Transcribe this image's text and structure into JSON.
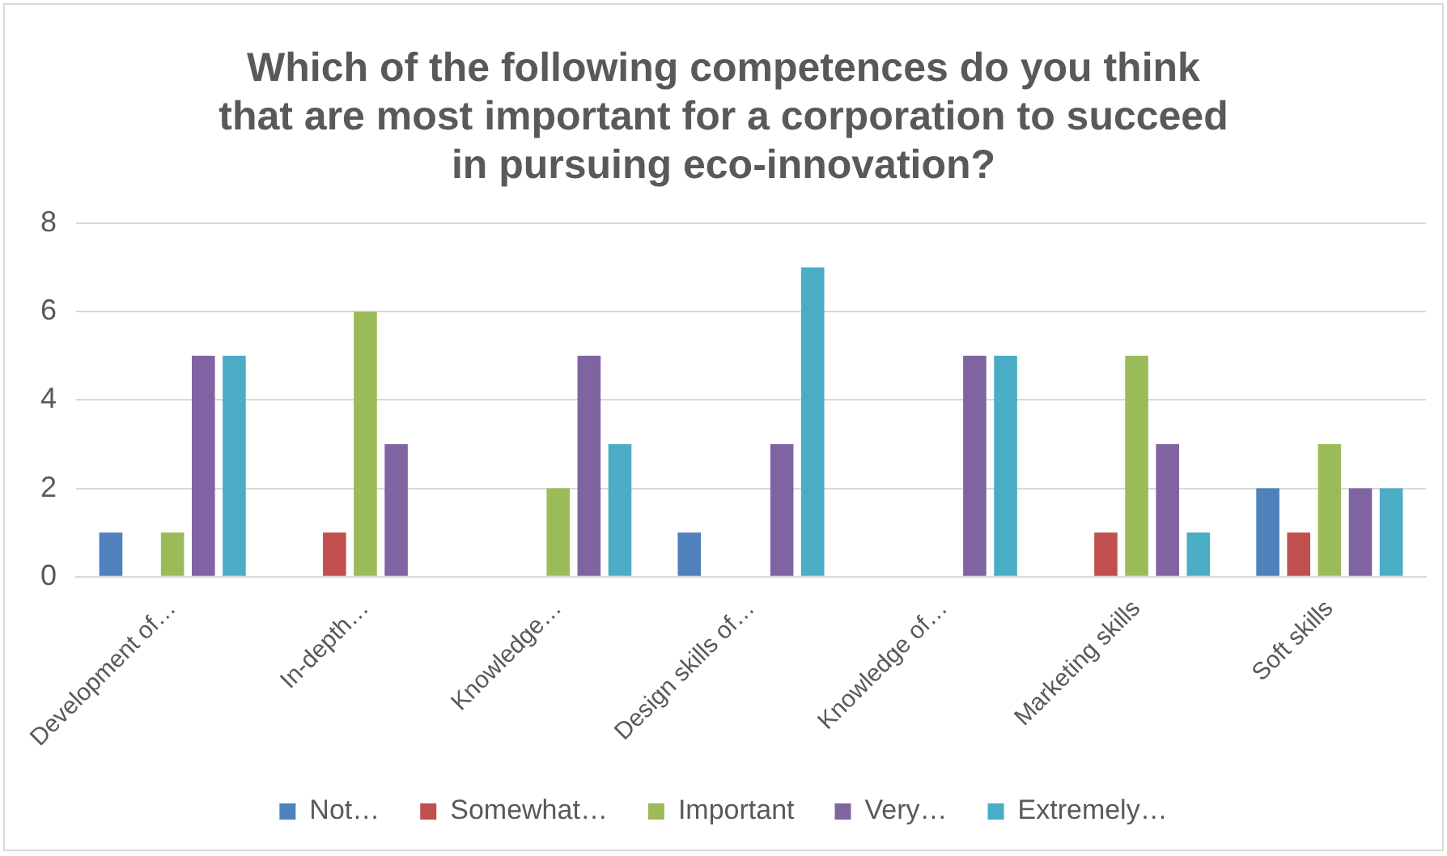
{
  "chart_data": {
    "type": "bar",
    "title": "Which of the following competences do you think\nthat are most important for a corporation to succeed\nin pursuing eco-innovation?",
    "categories": [
      "Development of…",
      "In-depth…",
      "Knowledge…",
      "Design skills of…",
      "Knowledge of…",
      "Marketing skills",
      "Soft skills"
    ],
    "series": [
      {
        "name": "Not…",
        "color": "#4f81bd",
        "values": [
          1,
          0,
          0,
          1,
          0,
          0,
          2
        ]
      },
      {
        "name": "Somewhat…",
        "color": "#c0504d",
        "values": [
          0,
          1,
          0,
          0,
          0,
          1,
          1
        ]
      },
      {
        "name": "Important",
        "color": "#9bbb59",
        "values": [
          1,
          6,
          2,
          0,
          0,
          5,
          3
        ]
      },
      {
        "name": "Very…",
        "color": "#8064a2",
        "values": [
          5,
          3,
          5,
          3,
          5,
          3,
          2
        ]
      },
      {
        "name": "Extremely…",
        "color": "#4bacc6",
        "values": [
          5,
          0,
          3,
          7,
          5,
          1,
          2
        ]
      }
    ],
    "ylim": [
      0,
      8
    ],
    "yticks": [
      0,
      2,
      4,
      6,
      8
    ],
    "grid": "y",
    "legend": "bottom"
  }
}
